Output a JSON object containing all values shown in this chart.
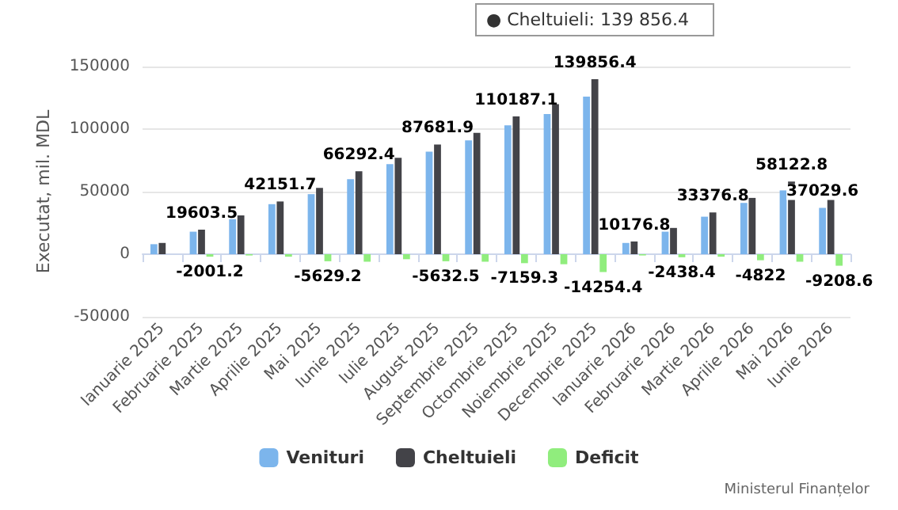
{
  "chart_data": {
    "type": "bar",
    "ylabel": "Executat, mil. MDL",
    "categories": [
      "Ianuarie 2025",
      "Februarie 2025",
      "Martie 2025",
      "Aprilie 2025",
      "Mai 2025",
      "Iunie 2025",
      "Iulie 2025",
      "August 2025",
      "Septembrie 2025",
      "Octombrie 2025",
      "Noiembrie 2025",
      "Decembrie 2025",
      "Ianuarie 2026",
      "Februarie 2026",
      "Martie 2026",
      "Aprilie 2026",
      "Mai 2026",
      "Iunie 2026"
    ],
    "series": [
      {
        "name": "Venituri",
        "color": "#7cb5ec",
        "values": [
          8000,
          18000,
          28000,
          40000,
          48000,
          60000,
          72000,
          82000,
          91000,
          103000,
          112000,
          126000,
          9000,
          18000,
          30000,
          41000,
          51000,
          37029.6
        ],
        "value_labels": [
          null,
          null,
          null,
          null,
          null,
          null,
          null,
          null,
          null,
          null,
          null,
          null,
          null,
          null,
          null,
          null,
          null,
          "37029.6"
        ]
      },
      {
        "name": "Cheltuieli",
        "color": "#434348",
        "values": [
          9000,
          19603.5,
          31000,
          42151.7,
          53000,
          66292.4,
          77000,
          87681.9,
          97000,
          110187.1,
          120000,
          139856.4,
          10176.8,
          21000,
          33376.8,
          45000,
          58122.8,
          46000
        ],
        "value_labels": [
          null,
          "19603.5",
          null,
          "42151.7",
          null,
          "66292.4",
          null,
          "87681.9",
          null,
          "110187.1",
          null,
          "139856.4",
          "10176.8",
          null,
          "33376.8",
          null,
          "58122.8",
          null
        ]
      },
      {
        "name": "Deficit",
        "color": "#90ed7d",
        "values": [
          0,
          -2001.2,
          -1000,
          -2000,
          -5629.2,
          -6000,
          -4000,
          -5632.5,
          -6000,
          -7159.3,
          -8000,
          -14254.4,
          -1000,
          -2438.4,
          -2000,
          -4822,
          -6000,
          -9208.6
        ],
        "value_labels": [
          null,
          "-2001.2",
          null,
          null,
          "-5629.2",
          null,
          null,
          "-5632.5",
          null,
          "-7159.3",
          null,
          "-14254.4",
          null,
          "-2438.4",
          null,
          "-4822",
          null,
          "-9208.6"
        ]
      }
    ],
    "ylim": [
      -50000,
      150000
    ],
    "yticks": [
      -50000,
      0,
      50000,
      100000,
      150000
    ],
    "grid": "y",
    "legend": "bottom",
    "annotations": [
      "● Cheltuieli: 139 856.4",
      "Ministerul Finanțelor"
    ]
  }
}
